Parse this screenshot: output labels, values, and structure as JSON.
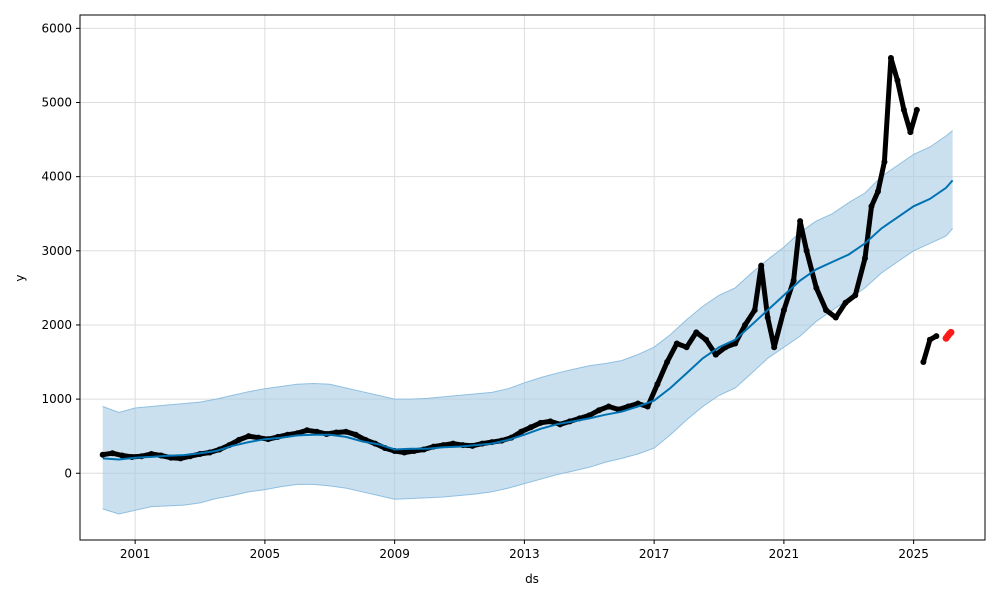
{
  "chart_data": {
    "type": "line",
    "title": "",
    "xlabel": "ds",
    "ylabel": "y",
    "xlim": [
      1999.3,
      2027.2
    ],
    "ylim": [
      -900,
      6180
    ],
    "grid": true,
    "x_ticks": [
      2001,
      2005,
      2009,
      2013,
      2017,
      2021,
      2025
    ],
    "x_tick_labels": [
      "2001",
      "2005",
      "2009",
      "2013",
      "2017",
      "2021",
      "2025"
    ],
    "y_ticks": [
      0,
      1000,
      2000,
      3000,
      4000,
      5000,
      6000
    ],
    "y_tick_labels": [
      "0",
      "1000",
      "2000",
      "3000",
      "4000",
      "5000",
      "6000"
    ],
    "colors": {
      "forecast": "#0072B2",
      "interval": "#a6cbe5",
      "interval_stroke": "#8fbfe0",
      "observed": "#000000",
      "recent": "#ff1a1a",
      "grid": "#dddddd"
    },
    "series": [
      {
        "role": "forecast",
        "marker": "line",
        "x": [
          2000.0,
          2000.5,
          2001.0,
          2001.5,
          2002.0,
          2002.5,
          2003.0,
          2003.5,
          2004.0,
          2004.5,
          2005.0,
          2005.5,
          2006.0,
          2006.5,
          2007.0,
          2007.5,
          2008.0,
          2008.5,
          2009.0,
          2009.5,
          2010.0,
          2010.5,
          2011.0,
          2011.5,
          2012.0,
          2012.5,
          2013.0,
          2013.5,
          2014.0,
          2014.5,
          2015.0,
          2015.5,
          2016.0,
          2016.5,
          2017.0,
          2017.5,
          2018.0,
          2018.5,
          2019.0,
          2019.5,
          2020.0,
          2020.5,
          2021.0,
          2021.5,
          2022.0,
          2022.5,
          2023.0,
          2023.5,
          2024.0,
          2024.5,
          2025.0,
          2025.5,
          2026.0,
          2026.2
        ],
        "y": [
          200,
          185,
          210,
          220,
          235,
          245,
          270,
          300,
          370,
          420,
          460,
          480,
          510,
          520,
          520,
          490,
          430,
          390,
          320,
          330,
          330,
          350,
          360,
          380,
          400,
          450,
          520,
          600,
          660,
          700,
          740,
          790,
          830,
          900,
          980,
          1150,
          1350,
          1550,
          1700,
          1800,
          2000,
          2200,
          2400,
          2600,
          2750,
          2850,
          2950,
          3100,
          3300,
          3450,
          3600,
          3700,
          3850,
          3950
        ]
      },
      {
        "role": "uncertainty_interval",
        "marker": "band",
        "x": [
          2000.0,
          2000.5,
          2001.0,
          2001.5,
          2002.0,
          2002.5,
          2003.0,
          2003.5,
          2004.0,
          2004.5,
          2005.0,
          2005.5,
          2006.0,
          2006.5,
          2007.0,
          2007.5,
          2008.0,
          2008.5,
          2009.0,
          2009.5,
          2010.0,
          2010.5,
          2011.0,
          2011.5,
          2012.0,
          2012.5,
          2013.0,
          2013.5,
          2014.0,
          2014.5,
          2015.0,
          2015.5,
          2016.0,
          2016.5,
          2017.0,
          2017.5,
          2018.0,
          2018.5,
          2019.0,
          2019.5,
          2020.0,
          2020.5,
          2021.0,
          2021.5,
          2022.0,
          2022.5,
          2023.0,
          2023.5,
          2024.0,
          2024.5,
          2025.0,
          2025.5,
          2026.0,
          2026.2
        ],
        "lower": [
          -480,
          -550,
          -500,
          -450,
          -440,
          -430,
          -400,
          -340,
          -300,
          -250,
          -220,
          -180,
          -150,
          -150,
          -170,
          -200,
          -250,
          -300,
          -350,
          -340,
          -330,
          -320,
          -300,
          -280,
          -250,
          -200,
          -140,
          -80,
          -20,
          30,
          80,
          150,
          200,
          260,
          340,
          520,
          720,
          900,
          1050,
          1150,
          1350,
          1550,
          1700,
          1850,
          2050,
          2200,
          2350,
          2500,
          2700,
          2850,
          3000,
          3100,
          3200,
          3300
        ],
        "upper": [
          900,
          820,
          880,
          900,
          920,
          940,
          960,
          1000,
          1050,
          1100,
          1140,
          1170,
          1200,
          1210,
          1200,
          1150,
          1100,
          1050,
          1000,
          1000,
          1010,
          1030,
          1050,
          1070,
          1090,
          1140,
          1220,
          1290,
          1350,
          1400,
          1450,
          1480,
          1520,
          1600,
          1700,
          1870,
          2070,
          2250,
          2400,
          2500,
          2700,
          2880,
          3050,
          3250,
          3400,
          3500,
          3650,
          3780,
          4000,
          4150,
          4300,
          4400,
          4550,
          4620
        ]
      },
      {
        "role": "observed",
        "marker": "dots",
        "x": [
          2000.0,
          2000.3,
          2000.6,
          2000.9,
          2001.2,
          2001.5,
          2001.8,
          2002.1,
          2002.4,
          2002.7,
          2003.0,
          2003.3,
          2003.6,
          2003.9,
          2004.2,
          2004.5,
          2004.8,
          2005.1,
          2005.4,
          2005.7,
          2006.0,
          2006.3,
          2006.6,
          2006.9,
          2007.2,
          2007.5,
          2007.8,
          2008.1,
          2008.4,
          2008.7,
          2009.0,
          2009.3,
          2009.6,
          2009.9,
          2010.2,
          2010.5,
          2010.8,
          2011.1,
          2011.4,
          2011.7,
          2012.0,
          2012.3,
          2012.6,
          2012.9,
          2013.2,
          2013.5,
          2013.8,
          2014.1,
          2014.4,
          2014.7,
          2015.0,
          2015.3,
          2015.6,
          2015.9,
          2016.2,
          2016.5,
          2016.8,
          2017.1,
          2017.4,
          2017.7,
          2018.0,
          2018.3,
          2018.6,
          2018.9,
          2019.2,
          2019.5,
          2019.8,
          2020.1,
          2020.3,
          2020.5,
          2020.7,
          2021.0,
          2021.3,
          2021.5,
          2021.7,
          2022.0,
          2022.3,
          2022.6,
          2022.9,
          2023.2,
          2023.5,
          2023.7,
          2023.9,
          2024.1,
          2024.3,
          2024.5,
          2024.7,
          2024.9,
          2025.1,
          2025.3,
          2025.5,
          2025.7
        ],
        "y": [
          250,
          270,
          240,
          220,
          230,
          260,
          240,
          210,
          200,
          230,
          260,
          280,
          320,
          380,
          450,
          500,
          480,
          460,
          490,
          520,
          540,
          580,
          560,
          530,
          550,
          560,
          520,
          450,
          400,
          340,
          300,
          280,
          300,
          320,
          360,
          380,
          400,
          380,
          370,
          400,
          420,
          440,
          480,
          560,
          620,
          680,
          700,
          660,
          700,
          740,
          780,
          850,
          900,
          860,
          900,
          940,
          900,
          1200,
          1500,
          1750,
          1700,
          1900,
          1800,
          1600,
          1700,
          1750,
          2000,
          2200,
          2800,
          2100,
          1700,
          2200,
          2600,
          3400,
          3000,
          2500,
          2200,
          2100,
          2300,
          2400,
          2900,
          3600,
          3800,
          4200,
          5600,
          5300,
          4900,
          4600,
          4900,
          1500,
          1800,
          1850
        ]
      },
      {
        "role": "recent",
        "marker": "dots",
        "x": [
          2026.0,
          2026.05,
          2026.1,
          2026.15
        ],
        "y": [
          1820,
          1850,
          1880,
          1900
        ]
      }
    ]
  }
}
